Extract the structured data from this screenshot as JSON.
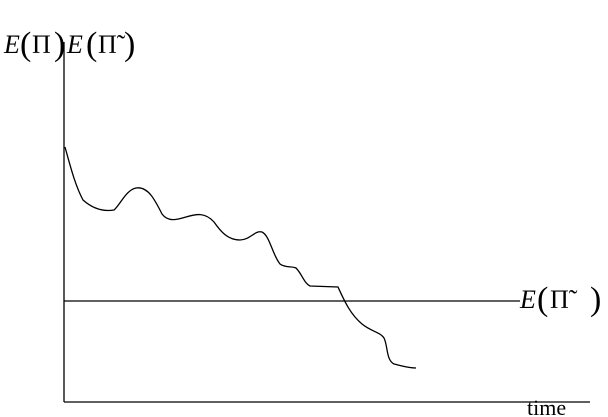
{
  "chart_data": {
    "type": "line",
    "xlabel": "time",
    "ylabel": {
      "text_1": "E",
      "paren_1_open": "(",
      "symbol_1": "Π",
      "paren_1_close": ")",
      "text_2": "E",
      "paren_2_open": "(",
      "symbol_2": "Π̃",
      "paren_2_close": ")"
    },
    "reference_line": {
      "label_text": "E",
      "label_open": "(",
      "label_symbol": "Π̃",
      "label_close": ")"
    },
    "ticks": {
      "x": [],
      "y": []
    },
    "grid": false,
    "colors": {
      "line": "#000000",
      "axis": "#000000",
      "background": "#ffffff"
    }
  }
}
